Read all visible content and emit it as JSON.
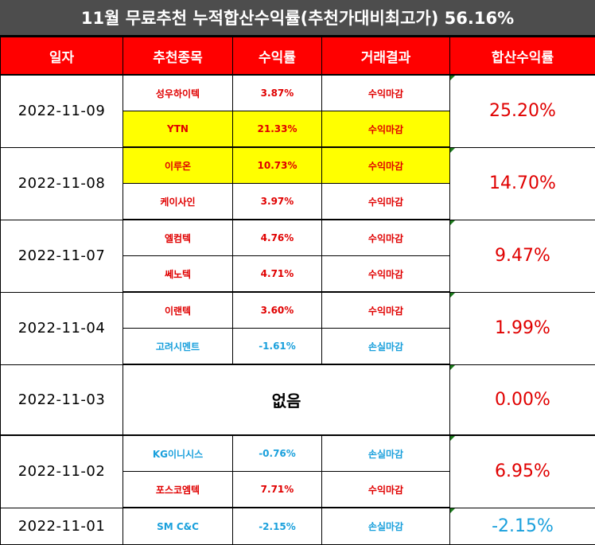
{
  "title": "11월 무료추천 누적합산수익률(추천가대비최고가) 56.16%",
  "headers": [
    "일자",
    "추천종목",
    "수익률",
    "거래결과",
    "합산수익률"
  ],
  "colors": {
    "header_bg": "#ff0000",
    "title_bg": "#4d4d4d",
    "profit": "#e00000",
    "loss": "#1aa0dc",
    "highlight": "#ffff00"
  },
  "groups": [
    {
      "date": "2022-11-09",
      "total": "25.20%",
      "rows": [
        {
          "stock": "성우하이텍",
          "rate": "3.87%",
          "result": "수익마감"
        },
        {
          "stock": "YTN",
          "rate": "21.33%",
          "result": "수익마감"
        }
      ]
    },
    {
      "date": "2022-11-08",
      "total": "14.70%",
      "rows": [
        {
          "stock": "이루온",
          "rate": "10.73%",
          "result": "수익마감"
        },
        {
          "stock": "케이사인",
          "rate": "3.97%",
          "result": "수익마감"
        }
      ]
    },
    {
      "date": "2022-11-07",
      "total": "9.47%",
      "rows": [
        {
          "stock": "엘컴텍",
          "rate": "4.76%",
          "result": "수익마감"
        },
        {
          "stock": "쎄노텍",
          "rate": "4.71%",
          "result": "수익마감"
        }
      ]
    },
    {
      "date": "2022-11-04",
      "total": "1.99%",
      "rows": [
        {
          "stock": "이랜텍",
          "rate": "3.60%",
          "result": "수익마감"
        },
        {
          "stock": "고려시멘트",
          "rate": "-1.61%",
          "result": "손실마감"
        }
      ]
    },
    {
      "date": "2022-11-03",
      "total": "0.00%",
      "none": "없음"
    },
    {
      "date": "2022-11-02",
      "total": "6.95%",
      "rows": [
        {
          "stock": "KG이니시스",
          "rate": "-0.76%",
          "result": "손실마감"
        },
        {
          "stock": "포스코엠텍",
          "rate": "7.71%",
          "result": "수익마감"
        }
      ]
    },
    {
      "date": "2022-11-01",
      "total": "-2.15%",
      "rows": [
        {
          "stock": "SM C&C",
          "rate": "-2.15%",
          "result": "손실마감"
        }
      ]
    }
  ]
}
